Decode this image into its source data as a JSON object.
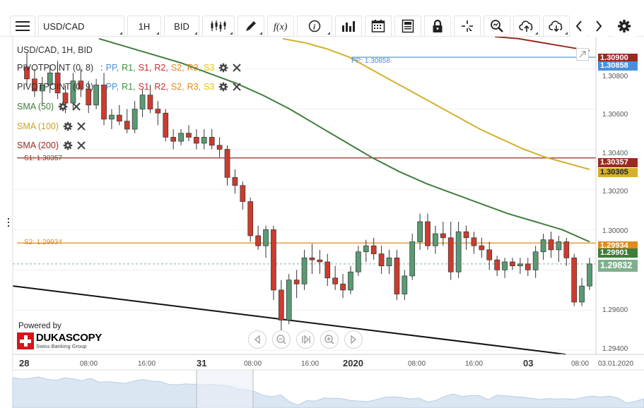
{
  "toolbar": {
    "symbol": "USD/CAD",
    "period": "1H",
    "side": "BID",
    "icons": [
      "menu-icon",
      "candles-icon",
      "pencil-icon",
      "fx-icon",
      "info-icon",
      "bars-icon",
      "calendar-icon",
      "news-icon",
      "lock-icon",
      "crosshair-icon",
      "zoom-icon",
      "upload-icon",
      "download-icon",
      "chevron-left-icon",
      "chevron-right-icon",
      "gear-icon"
    ]
  },
  "legend": {
    "title": "USD/CAD, 1H, BID",
    "pivot1": {
      "name": "PIVOTPOINT (0, 8)",
      "sep": ":",
      "levels": [
        "PP,",
        "R1,",
        "S1,",
        "R2,",
        "S2,",
        "R3,",
        "S3"
      ]
    },
    "pivot2": {
      "name": "PIVOTPOINT (0, 9)",
      "sep": ":",
      "levels": [
        "PP,",
        "R1,",
        "S1,",
        "R2,",
        "S2,",
        "R3,",
        "S3"
      ]
    },
    "sma50": "SMA (50)",
    "sma100": "SMA (100)",
    "sma200": "SMA (200)"
  },
  "colors": {
    "up": "#5a9a74",
    "down": "#cc3b2e",
    "sma50": "#3f7d3a",
    "sma100": "#d4b02c",
    "sma200": "#9a2a20",
    "pp": "#4a90d9",
    "s1": "#9a2a20",
    "s2": "#e08a1a",
    "r1": "#3f8f3f",
    "r2": "#cc2b2b",
    "r3": "#e08a1a",
    "s3": "#ecc200"
  },
  "levels": {
    "pp": "PP: 1.30858",
    "s1": "S1: 1.30357",
    "s2": "S2: 1.29934"
  },
  "price_tags": {
    "sma200": "1.30900",
    "pp": "1.30858",
    "s1": "1.30357",
    "sma100": "1.30305",
    "s2": "1.29934",
    "sma50": "1.29901",
    "last": "1.29832"
  },
  "y_ticks": [
    "1.30800",
    "1.30600",
    "1.30400",
    "1.30200",
    "1.30000",
    "1.29600",
    "1.29400"
  ],
  "x_ticks": [
    {
      "label": "28",
      "big": true
    },
    {
      "label": "08:00"
    },
    {
      "label": "16:00"
    },
    {
      "label": "31",
      "big": true
    },
    {
      "label": "08:00"
    },
    {
      "label": "16:00"
    },
    {
      "label": "2020",
      "big": true
    },
    {
      "label": "08:00"
    },
    {
      "label": "16:00"
    },
    {
      "label": "03",
      "big": true
    },
    {
      "label": "08:00"
    }
  ],
  "x_end_label": "03.01.2020",
  "branding": {
    "powered_by": "Powered by",
    "brand": "DUKASCOPY",
    "tagline": "Swiss Banking Group"
  },
  "chart_data": {
    "type": "candlestick",
    "instrument": "USD/CAD",
    "timeframe": "1H",
    "price_side": "BID",
    "ylim": [
      1.2938,
      1.3096
    ],
    "candles": [
      {
        "o": 1.3081,
        "h": 1.3088,
        "l": 1.3072,
        "c": 1.3075
      },
      {
        "o": 1.3075,
        "h": 1.308,
        "l": 1.3066,
        "c": 1.3069
      },
      {
        "o": 1.3069,
        "h": 1.3076,
        "l": 1.3062,
        "c": 1.3072
      },
      {
        "o": 1.3072,
        "h": 1.3082,
        "l": 1.3068,
        "c": 1.3078
      },
      {
        "o": 1.3078,
        "h": 1.3084,
        "l": 1.3065,
        "c": 1.3068
      },
      {
        "o": 1.3068,
        "h": 1.3072,
        "l": 1.3058,
        "c": 1.3063
      },
      {
        "o": 1.3063,
        "h": 1.3078,
        "l": 1.306,
        "c": 1.3074
      },
      {
        "o": 1.3074,
        "h": 1.308,
        "l": 1.3066,
        "c": 1.307
      },
      {
        "o": 1.307,
        "h": 1.3074,
        "l": 1.3058,
        "c": 1.3062
      },
      {
        "o": 1.3062,
        "h": 1.3075,
        "l": 1.306,
        "c": 1.3072
      },
      {
        "o": 1.3072,
        "h": 1.3078,
        "l": 1.3052,
        "c": 1.3055
      },
      {
        "o": 1.3055,
        "h": 1.306,
        "l": 1.305,
        "c": 1.3057
      },
      {
        "o": 1.3057,
        "h": 1.3062,
        "l": 1.3052,
        "c": 1.3054
      },
      {
        "o": 1.3054,
        "h": 1.306,
        "l": 1.3048,
        "c": 1.305
      },
      {
        "o": 1.305,
        "h": 1.3064,
        "l": 1.3048,
        "c": 1.306
      },
      {
        "o": 1.306,
        "h": 1.307,
        "l": 1.3056,
        "c": 1.3067
      },
      {
        "o": 1.3067,
        "h": 1.3072,
        "l": 1.3058,
        "c": 1.306
      },
      {
        "o": 1.306,
        "h": 1.3064,
        "l": 1.3052,
        "c": 1.3058
      },
      {
        "o": 1.3058,
        "h": 1.306,
        "l": 1.3044,
        "c": 1.3046
      },
      {
        "o": 1.3046,
        "h": 1.305,
        "l": 1.304,
        "c": 1.3044
      },
      {
        "o": 1.3044,
        "h": 1.305,
        "l": 1.3042,
        "c": 1.3048
      },
      {
        "o": 1.3048,
        "h": 1.3052,
        "l": 1.3044,
        "c": 1.3046
      },
      {
        "o": 1.3046,
        "h": 1.305,
        "l": 1.304,
        "c": 1.3043
      },
      {
        "o": 1.3043,
        "h": 1.305,
        "l": 1.304,
        "c": 1.3046
      },
      {
        "o": 1.3046,
        "h": 1.305,
        "l": 1.304,
        "c": 1.3042
      },
      {
        "o": 1.3042,
        "h": 1.3046,
        "l": 1.3036,
        "c": 1.304
      },
      {
        "o": 1.304,
        "h": 1.3042,
        "l": 1.3022,
        "c": 1.3026
      },
      {
        "o": 1.3026,
        "h": 1.303,
        "l": 1.3018,
        "c": 1.3022
      },
      {
        "o": 1.3022,
        "h": 1.3024,
        "l": 1.301,
        "c": 1.3014
      },
      {
        "o": 1.3014,
        "h": 1.3016,
        "l": 1.2994,
        "c": 1.2997
      },
      {
        "o": 1.2997,
        "h": 1.3002,
        "l": 1.299,
        "c": 1.2992
      },
      {
        "o": 1.2992,
        "h": 1.3002,
        "l": 1.2986,
        "c": 1.3
      },
      {
        "o": 1.3,
        "h": 1.3002,
        "l": 1.2965,
        "c": 1.297
      },
      {
        "o": 1.297,
        "h": 1.2975,
        "l": 1.295,
        "c": 1.2955
      },
      {
        "o": 1.2955,
        "h": 1.2978,
        "l": 1.2953,
        "c": 1.2975
      },
      {
        "o": 1.2975,
        "h": 1.298,
        "l": 1.2966,
        "c": 1.2973
      },
      {
        "o": 1.2973,
        "h": 1.299,
        "l": 1.297,
        "c": 1.2986
      },
      {
        "o": 1.2986,
        "h": 1.2993,
        "l": 1.2978,
        "c": 1.2985
      },
      {
        "o": 1.2985,
        "h": 1.299,
        "l": 1.2978,
        "c": 1.2984
      },
      {
        "o": 1.2984,
        "h": 1.2988,
        "l": 1.2972,
        "c": 1.2976
      },
      {
        "o": 1.2976,
        "h": 1.2982,
        "l": 1.297,
        "c": 1.2973
      },
      {
        "o": 1.2973,
        "h": 1.2978,
        "l": 1.2966,
        "c": 1.297
      },
      {
        "o": 1.297,
        "h": 1.2982,
        "l": 1.2968,
        "c": 1.2979
      },
      {
        "o": 1.2979,
        "h": 1.2992,
        "l": 1.2977,
        "c": 1.2989
      },
      {
        "o": 1.2989,
        "h": 1.2995,
        "l": 1.2984,
        "c": 1.2992
      },
      {
        "o": 1.2992,
        "h": 1.2996,
        "l": 1.2985,
        "c": 1.2988
      },
      {
        "o": 1.2988,
        "h": 1.2992,
        "l": 1.2978,
        "c": 1.2982
      },
      {
        "o": 1.2982,
        "h": 1.299,
        "l": 1.2978,
        "c": 1.2986
      },
      {
        "o": 1.2986,
        "h": 1.299,
        "l": 1.2965,
        "c": 1.2968
      },
      {
        "o": 1.2968,
        "h": 1.298,
        "l": 1.2965,
        "c": 1.2977
      },
      {
        "o": 1.2977,
        "h": 1.2998,
        "l": 1.2975,
        "c": 1.2994
      },
      {
        "o": 1.2994,
        "h": 1.3008,
        "l": 1.299,
        "c": 1.3004
      },
      {
        "o": 1.3004,
        "h": 1.3008,
        "l": 1.299,
        "c": 1.2992
      },
      {
        "o": 1.2992,
        "h": 1.3002,
        "l": 1.2988,
        "c": 1.2998
      },
      {
        "o": 1.2998,
        "h": 1.3004,
        "l": 1.2992,
        "c": 1.2996
      },
      {
        "o": 1.2996,
        "h": 1.3004,
        "l": 1.2975,
        "c": 1.2979
      },
      {
        "o": 1.2979,
        "h": 1.3004,
        "l": 1.2976,
        "c": 1.2999
      },
      {
        "o": 1.2999,
        "h": 1.3002,
        "l": 1.299,
        "c": 1.2996
      },
      {
        "o": 1.2996,
        "h": 1.2999,
        "l": 1.2988,
        "c": 1.2992
      },
      {
        "o": 1.2992,
        "h": 1.2996,
        "l": 1.2986,
        "c": 1.299
      },
      {
        "o": 1.299,
        "h": 1.2994,
        "l": 1.298,
        "c": 1.2985
      },
      {
        "o": 1.2985,
        "h": 1.2987,
        "l": 1.2977,
        "c": 1.298
      },
      {
        "o": 1.298,
        "h": 1.2986,
        "l": 1.2976,
        "c": 1.2984
      },
      {
        "o": 1.2984,
        "h": 1.2986,
        "l": 1.298,
        "c": 1.2982
      },
      {
        "o": 1.2982,
        "h": 1.2986,
        "l": 1.2978,
        "c": 1.2983
      },
      {
        "o": 1.2983,
        "h": 1.2986,
        "l": 1.2977,
        "c": 1.298
      },
      {
        "o": 1.298,
        "h": 1.2992,
        "l": 1.2976,
        "c": 1.2989
      },
      {
        "o": 1.2989,
        "h": 1.2998,
        "l": 1.2985,
        "c": 1.2995
      },
      {
        "o": 1.2995,
        "h": 1.2999,
        "l": 1.2986,
        "c": 1.299
      },
      {
        "o": 1.299,
        "h": 1.2997,
        "l": 1.2984,
        "c": 1.2994
      },
      {
        "o": 1.2994,
        "h": 1.2996,
        "l": 1.2982,
        "c": 1.2986
      },
      {
        "o": 1.2986,
        "h": 1.2988,
        "l": 1.2962,
        "c": 1.2964
      },
      {
        "o": 1.2964,
        "h": 1.2976,
        "l": 1.2962,
        "c": 1.2972
      },
      {
        "o": 1.2972,
        "h": 1.2986,
        "l": 1.297,
        "c": 1.2983
      }
    ],
    "sma50": [
      1.3095,
      1.3091,
      1.3087,
      1.3083,
      1.3078,
      1.3073,
      1.3067,
      1.306,
      1.3052,
      1.3044,
      1.3036,
      1.3029,
      1.3023,
      1.3018,
      1.3013,
      1.3008,
      1.3004,
      1.3,
      1.2994
    ],
    "sma100": [
      1.3095,
      1.3093,
      1.309,
      1.3086,
      1.308,
      1.3074,
      1.3068,
      1.3062,
      1.3056,
      1.305,
      1.3045,
      1.304,
      1.3036,
      1.3033,
      1.303
    ],
    "sma200": [
      1.3096,
      1.3095,
      1.3093,
      1.3091,
      1.3089
    ],
    "pivot_levels": {
      "PP": 1.30858,
      "S1": 1.30357,
      "S2": 1.29934
    },
    "trend_line": [
      1.2972,
      1.2938
    ]
  }
}
